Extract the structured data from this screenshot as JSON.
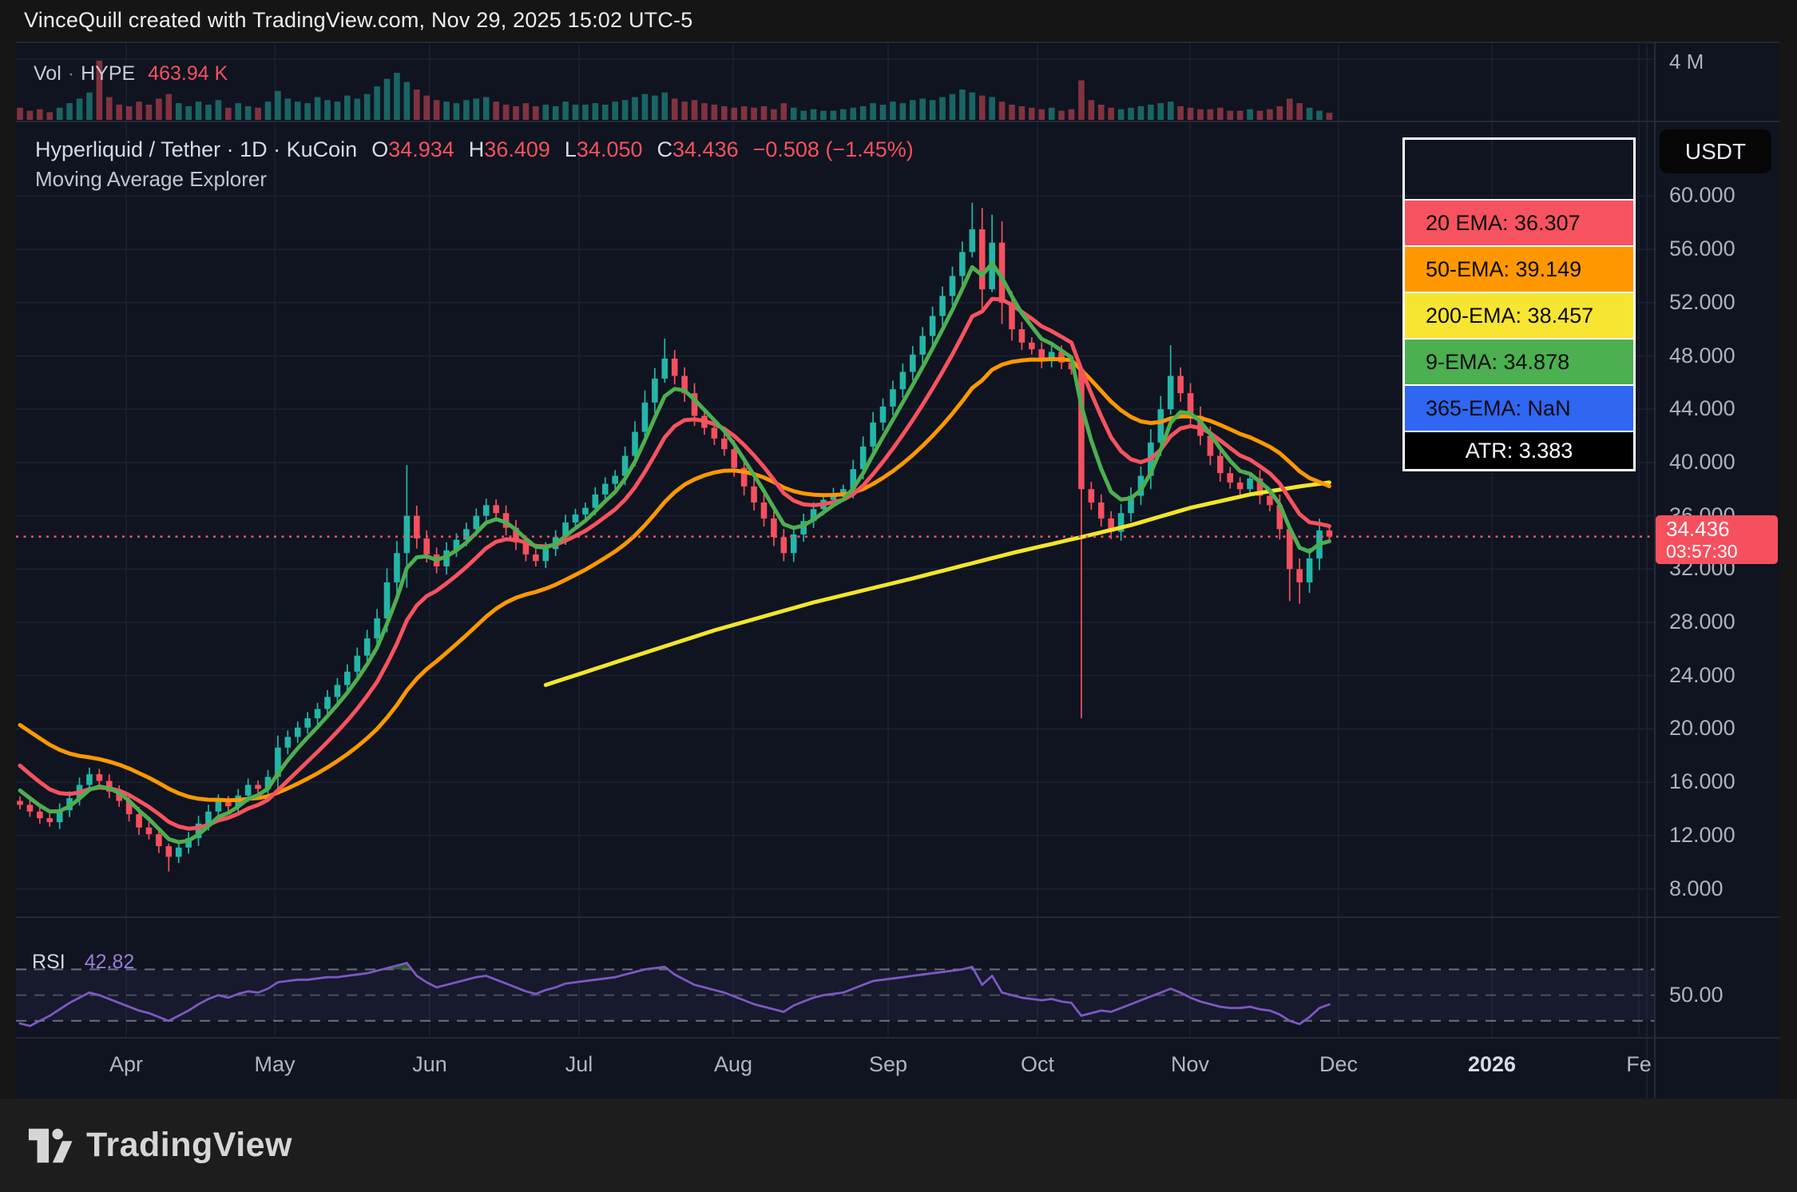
{
  "header": {
    "text": "VinceQuill created with TradingView.com, Nov 29, 2025 15:02 UTC-5"
  },
  "volume_pane": {
    "label": "Vol",
    "separator": "·",
    "symbol": "HYPE",
    "value": "463.94 K"
  },
  "title": {
    "symbol_line": "Hyperliquid / Tether · 1D · KuCoin",
    "o_label": "O",
    "o": "34.934",
    "h_label": "H",
    "h": "36.409",
    "l_label": "L",
    "l": "34.050",
    "c_label": "C",
    "c": "34.436",
    "change": "−0.508 (−1.45%)",
    "indicator_name": "Moving Average Explorer"
  },
  "legend": {
    "rows": [
      {
        "label": "20 EMA: 36.307",
        "bg": "#f7525f"
      },
      {
        "label": "50-EMA: 39.149",
        "bg": "#ff9800"
      },
      {
        "label": "200-EMA: 38.457",
        "bg": "#f7e532"
      },
      {
        "label": "9-EMA: 34.878",
        "bg": "#4caf50"
      },
      {
        "label": "365-EMA: NaN",
        "bg": "#2f66f2"
      },
      {
        "label": "ATR: 3.383",
        "bg": "#000000"
      }
    ]
  },
  "axis": {
    "currency_button": "USDT",
    "volume_tick": "4 M",
    "rsi_tick": "50.00",
    "price_ticks": [
      "60.000",
      "56.000",
      "52.000",
      "48.000",
      "44.000",
      "40.000",
      "36.000",
      "32.000",
      "28.000",
      "24.000",
      "20.000",
      "16.000",
      "12.000",
      "8.000"
    ],
    "months": [
      {
        "label": "Apr"
      },
      {
        "label": "May"
      },
      {
        "label": "Jun"
      },
      {
        "label": "Jul"
      },
      {
        "label": "Aug"
      },
      {
        "label": "Sep"
      },
      {
        "label": "Oct"
      },
      {
        "label": "Nov"
      },
      {
        "label": "Dec"
      },
      {
        "label": "2026",
        "bold": true
      },
      {
        "label": "Fe"
      }
    ]
  },
  "price_label": {
    "price": "34.436",
    "countdown": "03:57:30"
  },
  "rsi_pane": {
    "label": "RSI",
    "value": "42.82"
  },
  "footer": {
    "logo_text": "TradingView"
  },
  "colors": {
    "up": "#23b6a7",
    "down": "#f6505e",
    "ema9": "#4caf50",
    "ema20": "#f7525f",
    "ema50": "#ff9800",
    "ema200": "#f3e52c",
    "rsi_line": "#7e57c2",
    "pane_bg": "#0f1420",
    "grid": "#1c2233",
    "separator": "#2a2f3b",
    "price_line": "#f6505e"
  },
  "chart_data": {
    "type": "candlestick",
    "title": "Hyperliquid / Tether · 1D · KuCoin",
    "x_start": "Mar 2025",
    "x_end": "Nov 29 2025",
    "candle_step_days": 2,
    "price_axis_range_visible": [
      5.9,
      65.2
    ],
    "ohlc_last": {
      "open": 34.934,
      "high": 36.409,
      "low": 34.05,
      "close": 34.436,
      "change": -0.508,
      "change_pct": -1.45
    },
    "first_open": 14.6,
    "closes": [
      14.3,
      13.8,
      13.3,
      13.0,
      13.9,
      14.8,
      15.8,
      16.6,
      16.1,
      15.3,
      14.6,
      13.6,
      12.6,
      12.1,
      11.2,
      10.4,
      11.1,
      11.8,
      12.9,
      13.8,
      14.6,
      14.2,
      15.0,
      15.8,
      15.5,
      16.4,
      18.6,
      19.4,
      20.1,
      20.8,
      21.5,
      22.4,
      23.3,
      24.3,
      25.5,
      26.8,
      28.3,
      31.0,
      33.2,
      36.0,
      34.3,
      33.1,
      32.2,
      33.4,
      34.2,
      35.0,
      36.0,
      36.8,
      36.2,
      35.1,
      34.0,
      33.1,
      32.6,
      33.5,
      34.4,
      35.5,
      36.1,
      36.6,
      37.6,
      38.4,
      39.0,
      40.5,
      42.3,
      44.5,
      46.3,
      47.8,
      46.5,
      45.2,
      43.5,
      42.6,
      41.8,
      41.0,
      39.6,
      38.2,
      37.0,
      35.8,
      34.4,
      33.2,
      34.6,
      35.6,
      36.5,
      37.2,
      37.7,
      38.0,
      39.5,
      41.2,
      43.0,
      44.2,
      45.5,
      46.8,
      48.1,
      49.5,
      51.0,
      52.5,
      54.0,
      55.8,
      57.5,
      53.0,
      56.5,
      52.0,
      50.0,
      49.0,
      48.5,
      47.6,
      48.3,
      47.5,
      47.0,
      38.0,
      37.0,
      35.8,
      34.8,
      36.2,
      37.5,
      39.0,
      41.5,
      44.0,
      46.5,
      45.2,
      43.5,
      42.0,
      40.5,
      39.2,
      38.5,
      38.0,
      38.8,
      37.5,
      36.8,
      35.0,
      32.0,
      31.0,
      32.8,
      34.9,
      34.436
    ],
    "wick_overrides": {
      "15": [
        11.4,
        9.3
      ],
      "39": [
        39.8,
        30.6
      ],
      "65": [
        49.3,
        46.0
      ],
      "96": [
        59.5,
        55.4
      ],
      "98": [
        58.6,
        52.8
      ],
      "107": [
        47.3,
        20.8
      ],
      "116": [
        48.8,
        43.6
      ],
      "128": [
        33.6,
        29.6
      ],
      "129": [
        32.8,
        29.4
      ]
    },
    "volumes_millions": [
      0.8,
      0.6,
      0.7,
      0.5,
      0.8,
      1.1,
      1.4,
      1.8,
      3.9,
      1.5,
      1.0,
      0.9,
      1.2,
      1.0,
      1.4,
      1.7,
      1.1,
      0.9,
      1.2,
      1.0,
      1.3,
      0.8,
      1.1,
      0.9,
      0.8,
      1.2,
      1.9,
      1.4,
      1.2,
      1.1,
      1.5,
      1.3,
      1.2,
      1.6,
      1.4,
      1.7,
      2.2,
      2.7,
      3.1,
      2.5,
      2.0,
      1.6,
      1.3,
      1.2,
      1.1,
      1.3,
      1.4,
      1.5,
      1.2,
      1.0,
      0.9,
      1.1,
      0.9,
      1.0,
      0.9,
      1.2,
      1.0,
      1.0,
      1.1,
      1.0,
      1.2,
      1.3,
      1.5,
      1.7,
      1.6,
      1.8,
      1.4,
      1.2,
      1.3,
      1.1,
      1.0,
      0.9,
      0.8,
      0.9,
      0.8,
      0.9,
      0.7,
      1.1,
      0.8,
      0.6,
      0.7,
      0.6,
      0.6,
      0.7,
      0.8,
      0.9,
      1.1,
      1.0,
      1.2,
      1.1,
      1.3,
      1.4,
      1.3,
      1.5,
      1.7,
      2.0,
      1.8,
      1.6,
      1.5,
      1.2,
      1.0,
      0.9,
      0.8,
      0.7,
      0.8,
      0.6,
      0.7,
      2.6,
      1.3,
      1.0,
      0.8,
      0.7,
      0.8,
      0.9,
      1.0,
      1.1,
      1.2,
      0.9,
      0.8,
      0.7,
      0.7,
      0.8,
      0.6,
      0.6,
      0.7,
      0.6,
      0.7,
      0.9,
      1.4,
      1.1,
      0.8,
      0.6,
      0.46
    ],
    "volume_axis_max_label_millions": 4,
    "last_volume_label": "463.94 K",
    "rsi": {
      "current": 42.82,
      "upper_band": 70,
      "middle": 50,
      "lower_band": 30,
      "values": [
        28,
        26,
        30,
        34,
        39,
        44,
        48,
        52,
        50,
        47,
        44,
        41,
        38,
        36,
        33,
        30,
        34,
        38,
        43,
        47,
        50,
        48,
        51,
        53,
        52,
        55,
        60,
        61,
        62,
        62,
        63,
        64,
        64,
        65,
        66,
        67,
        69,
        71,
        73,
        75,
        65,
        60,
        56,
        58,
        60,
        62,
        64,
        65,
        62,
        59,
        56,
        53,
        51,
        54,
        56,
        59,
        60,
        61,
        62,
        63,
        64,
        66,
        68,
        70,
        71,
        72,
        66,
        62,
        58,
        56,
        54,
        52,
        49,
        46,
        43,
        41,
        39,
        37,
        42,
        45,
        48,
        50,
        51,
        52,
        55,
        58,
        61,
        62,
        63,
        64,
        65,
        66,
        67,
        68,
        69,
        70,
        72,
        58,
        65,
        52,
        50,
        48,
        47,
        46,
        47,
        45,
        44,
        34,
        36,
        38,
        37,
        40,
        43,
        46,
        49,
        52,
        55,
        52,
        48,
        45,
        43,
        41,
        40,
        40,
        41,
        39,
        38,
        35,
        30,
        27.5,
        33,
        40,
        42.8
      ]
    },
    "indicators": {
      "ema20": {
        "value": 36.307,
        "k": 0.182,
        "seed": 17.9
      },
      "ema50": {
        "value": 39.149,
        "k": 0.077,
        "seed": 20.8
      },
      "ema200": {
        "value": 38.457,
        "anchors": [
          [
            53,
            23.3
          ],
          [
            60,
            25.0
          ],
          [
            70,
            27.4
          ],
          [
            80,
            29.5
          ],
          [
            90,
            31.3
          ],
          [
            100,
            33.2
          ],
          [
            107,
            34.4
          ],
          [
            112,
            35.3
          ],
          [
            118,
            36.6
          ],
          [
            124,
            37.6
          ],
          [
            129,
            38.2
          ],
          [
            132,
            38.5
          ]
        ]
      },
      "ema9": {
        "value": 34.878,
        "k": 0.364,
        "seed": 16.0
      },
      "ema365": {
        "value": "NaN"
      },
      "atr": {
        "value": 3.383
      }
    },
    "current_price_line": 34.436
  }
}
